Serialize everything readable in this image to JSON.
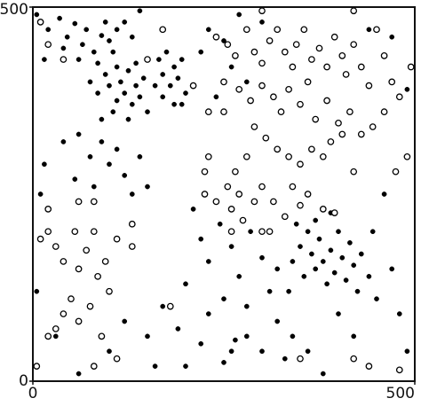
{
  "chart_data": {
    "type": "scatter",
    "xlim": [
      0,
      500
    ],
    "ylim": [
      0,
      500
    ],
    "xticks": [
      0,
      500
    ],
    "yticks": [
      0,
      500
    ],
    "series": [
      {
        "marker": "filled",
        "color": "#000000",
        "x": [
          20,
          35,
          45,
          55,
          65,
          70,
          80,
          90,
          95,
          100,
          105,
          110,
          15,
          40,
          60,
          85,
          120,
          130,
          75,
          85,
          95,
          100,
          110,
          115,
          120,
          125,
          130,
          135,
          140,
          145,
          105,
          90,
          125,
          150,
          110,
          135,
          165,
          170,
          175,
          180,
          185,
          190,
          195,
          200,
          170,
          185,
          160,
          195,
          230,
          250,
          220,
          270,
          300,
          140,
          260,
          280,
          240,
          40,
          60,
          75,
          90,
          100,
          110,
          120,
          140,
          150,
          130,
          80,
          55,
          15,
          10,
          340,
          350,
          355,
          360,
          365,
          370,
          375,
          380,
          385,
          390,
          395,
          400,
          405,
          410,
          415,
          420,
          425,
          430,
          440,
          445,
          390,
          370,
          335,
          345,
          210,
          220,
          230,
          245,
          260,
          270,
          285,
          300,
          310,
          320,
          250,
          280,
          230,
          200,
          190,
          220,
          260,
          265,
          280,
          300,
          320,
          340,
          360,
          330,
          400,
          420,
          450,
          470,
          480,
          490,
          170,
          150,
          120,
          100,
          60,
          30,
          5,
          160,
          200,
          250,
          380,
          460,
          490,
          480,
          470,
          440,
          5
        ],
        "values": [
          470,
          485,
          460,
          478,
          450,
          470,
          440,
          462,
          480,
          455,
          440,
          470,
          430,
          445,
          430,
          425,
          480,
          460,
          400,
          385,
          410,
          395,
          375,
          400,
          385,
          415,
          370,
          395,
          380,
          405,
          360,
          350,
          350,
          360,
          420,
          425,
          430,
          410,
          440,
          395,
          420,
          405,
          430,
          385,
          380,
          370,
          395,
          370,
          470,
          455,
          440,
          490,
          480,
          495,
          420,
          400,
          380,
          320,
          330,
          300,
          320,
          290,
          310,
          275,
          300,
          260,
          250,
          260,
          270,
          290,
          250,
          160,
          180,
          140,
          200,
          170,
          150,
          190,
          160,
          130,
          175,
          145,
          200,
          165,
          135,
          185,
          155,
          120,
          170,
          140,
          200,
          225,
          215,
          120,
          210,
          230,
          190,
          160,
          210,
          180,
          140,
          200,
          165,
          120,
          150,
          110,
          100,
          90,
          130,
          70,
          50,
          40,
          55,
          60,
          40,
          80,
          60,
          40,
          30,
          90,
          60,
          110,
          150,
          90,
          40,
          100,
          60,
          80,
          40,
          10,
          60,
          120,
          20,
          20,
          25,
          10,
          250,
          390,
          380,
          460,
          470,
          490
        ]
      },
      {
        "marker": "open",
        "color": "#000000",
        "x": [
          240,
          255,
          265,
          280,
          290,
          300,
          310,
          320,
          330,
          340,
          345,
          355,
          365,
          375,
          385,
          395,
          405,
          410,
          420,
          430,
          440,
          450,
          460,
          470,
          480,
          495,
          250,
          270,
          285,
          300,
          315,
          325,
          335,
          350,
          360,
          370,
          385,
          400,
          415,
          430,
          445,
          460,
          290,
          305,
          320,
          335,
          350,
          365,
          380,
          390,
          405,
          420,
          475,
          490,
          280,
          265,
          270,
          230,
          225,
          225,
          240,
          255,
          260,
          275,
          290,
          300,
          315,
          330,
          340,
          350,
          360,
          380,
          395,
          310,
          260,
          10,
          20,
          40,
          150,
          170,
          210,
          420,
          300,
          10,
          20,
          30,
          40,
          55,
          60,
          70,
          80,
          85,
          95,
          100,
          110,
          50,
          40,
          60,
          75,
          30,
          20,
          90,
          110,
          5,
          130,
          130,
          60,
          80,
          20,
          230,
          250,
          300,
          350,
          420,
          440,
          480,
          180,
          80
        ],
        "values": [
          460,
          450,
          435,
          470,
          440,
          425,
          455,
          470,
          440,
          420,
          450,
          470,
          430,
          445,
          420,
          460,
          435,
          410,
          450,
          420,
          395,
          470,
          435,
          400,
          380,
          420,
          400,
          390,
          375,
          395,
          380,
          360,
          390,
          370,
          400,
          350,
          375,
          345,
          360,
          330,
          340,
          360,
          340,
          325,
          310,
          300,
          290,
          310,
          300,
          320,
          330,
          280,
          280,
          300,
          300,
          280,
          250,
          300,
          280,
          250,
          240,
          260,
          230,
          215,
          240,
          260,
          240,
          220,
          260,
          235,
          250,
          230,
          225,
          200,
          200,
          480,
          450,
          430,
          430,
          470,
          395,
          495,
          495,
          190,
          200,
          180,
          160,
          200,
          150,
          175,
          200,
          140,
          160,
          120,
          190,
          110,
          90,
          80,
          100,
          70,
          60,
          60,
          30,
          20,
          180,
          210,
          240,
          240,
          230,
          360,
          360,
          200,
          30,
          30,
          20,
          15,
          100,
          20
        ]
      }
    ]
  }
}
